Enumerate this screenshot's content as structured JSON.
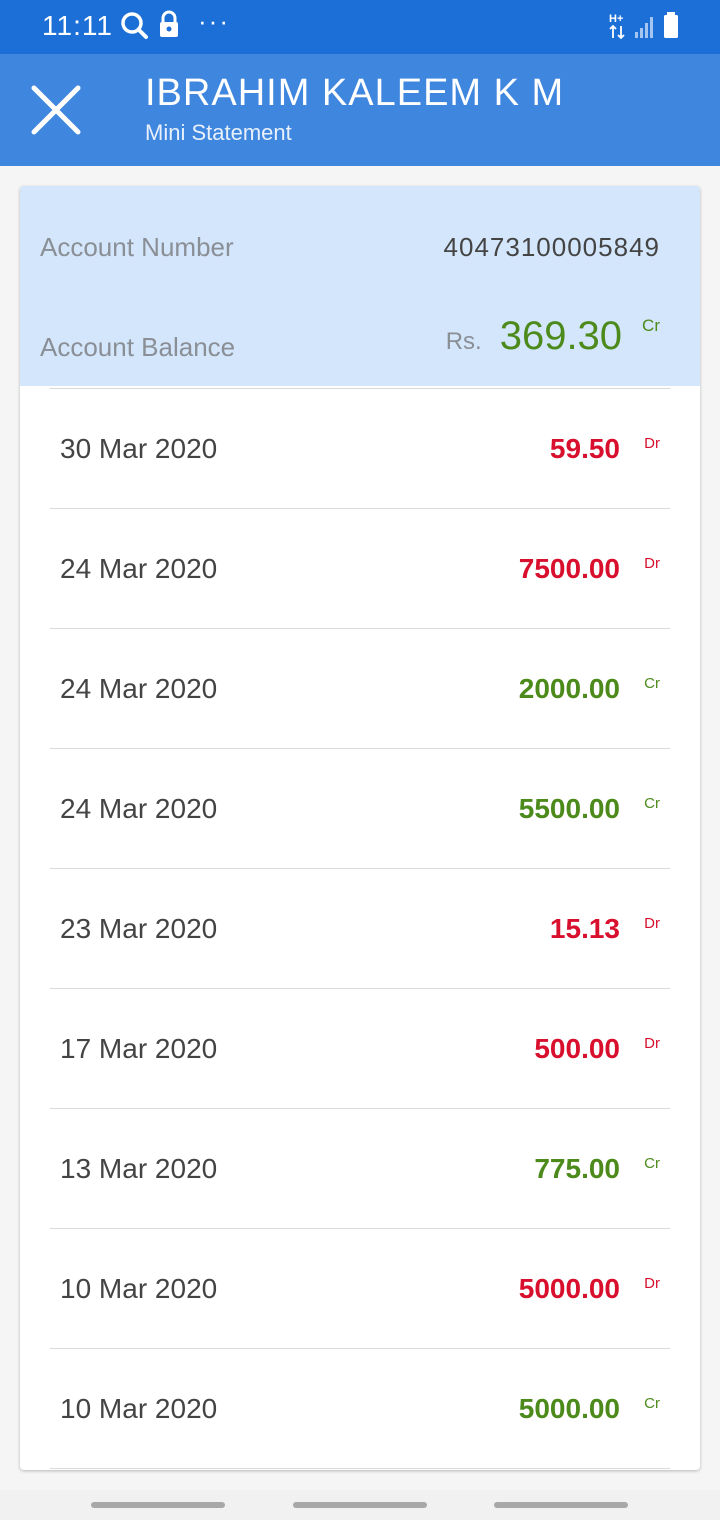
{
  "status_bar": {
    "time": "11:11",
    "more": "···",
    "icons": [
      "search-icon",
      "lock-icon",
      "data-arrows-icon",
      "signal-icon",
      "battery-icon"
    ]
  },
  "header": {
    "title": "IBRAHIM KALEEM K M",
    "subtitle": "Mini Statement"
  },
  "account": {
    "number_label": "Account Number",
    "number": "40473100005849",
    "balance_label": "Account Balance",
    "currency": "Rs.",
    "balance": "369.30",
    "balance_type": "Cr"
  },
  "transactions": [
    {
      "date": "30 Mar 2020",
      "amount": "59.50",
      "type": "Dr"
    },
    {
      "date": "24 Mar 2020",
      "amount": "7500.00",
      "type": "Dr"
    },
    {
      "date": "24 Mar 2020",
      "amount": "2000.00",
      "type": "Cr"
    },
    {
      "date": "24 Mar 2020",
      "amount": "5500.00",
      "type": "Cr"
    },
    {
      "date": "23 Mar 2020",
      "amount": "15.13",
      "type": "Dr"
    },
    {
      "date": "17 Mar 2020",
      "amount": "500.00",
      "type": "Dr"
    },
    {
      "date": "13 Mar 2020",
      "amount": "775.00",
      "type": "Cr"
    },
    {
      "date": "10 Mar 2020",
      "amount": "5000.00",
      "type": "Dr"
    },
    {
      "date": "10 Mar 2020",
      "amount": "5000.00",
      "type": "Cr"
    }
  ],
  "colors": {
    "status_bar": "#1b6fd6",
    "app_bar": "#3f86df",
    "summary_bg": "#d4e6fb",
    "debit": "#d8102e",
    "credit": "#4d8a1c"
  }
}
